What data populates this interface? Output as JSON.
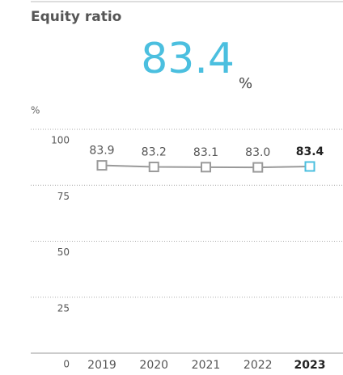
{
  "chart_data": {
    "type": "line",
    "title": "Equity ratio",
    "headline_value": 83.4,
    "headline_unit": "%",
    "y_unit": "%",
    "categories": [
      "2019",
      "2020",
      "2021",
      "2022",
      "2023"
    ],
    "series": [
      {
        "name": "Equity ratio",
        "color": "#9a9a9a",
        "values": [
          83.9,
          83.2,
          83.1,
          83.0,
          83.4
        ],
        "value_labels": [
          "83.9",
          "83.2",
          "83.1",
          "83.0",
          "83.4"
        ]
      }
    ],
    "highlight_index": 4,
    "highlight_color": "#4bbfdf",
    "ylim": [
      0,
      100
    ],
    "yticks": [
      0,
      25,
      50,
      75,
      100
    ],
    "grid": true
  }
}
